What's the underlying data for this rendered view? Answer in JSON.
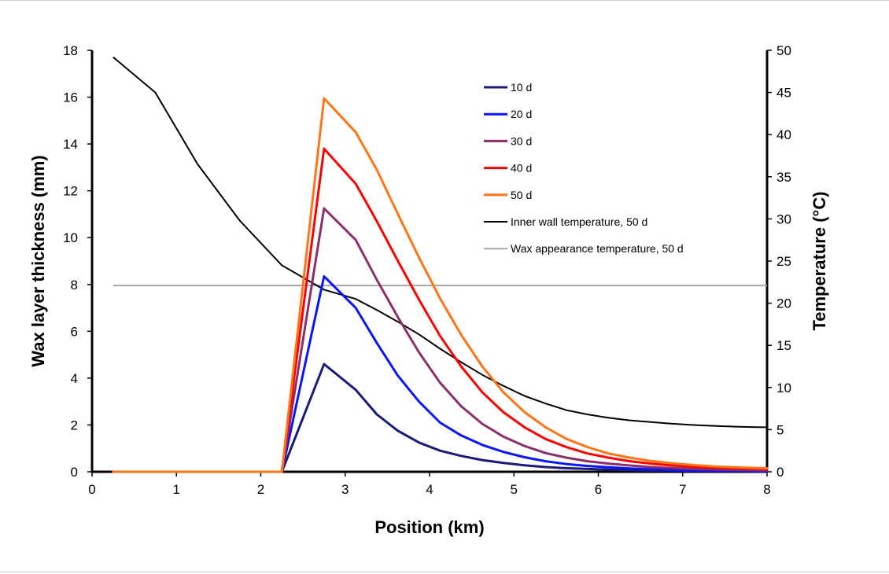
{
  "chart_data": {
    "type": "line",
    "title": "",
    "xlabel": "Position (km)",
    "ylabel": "Wax layer thickness (mm)",
    "y2label": "Temperature (°C)",
    "xlim": [
      0,
      8
    ],
    "ylim": [
      0,
      18
    ],
    "y2lim": [
      0,
      50
    ],
    "xticks": [
      0,
      1,
      2,
      3,
      4,
      5,
      6,
      7,
      8
    ],
    "yticks": [
      0,
      2,
      4,
      6,
      8,
      10,
      12,
      14,
      16,
      18
    ],
    "y2ticks": [
      0,
      5,
      10,
      15,
      20,
      25,
      30,
      35,
      40,
      45,
      50
    ],
    "grid": false,
    "legend_position": "upper-center-right",
    "x": [
      0.25,
      0.75,
      1.25,
      1.75,
      2.25,
      2.75,
      3.125,
      3.375,
      3.625,
      3.875,
      4.125,
      4.375,
      4.625,
      4.875,
      5.125,
      5.375,
      5.625,
      5.875,
      6.125,
      6.375,
      6.625,
      6.875,
      7.125,
      7.375,
      7.625,
      7.875,
      8.0
    ],
    "series": [
      {
        "name": "10 d",
        "color": "#1a1a7a",
        "axis": "left",
        "values": [
          0,
          0,
          0,
          0,
          0,
          4.6,
          3.5,
          2.45,
          1.75,
          1.25,
          0.9,
          0.68,
          0.5,
          0.38,
          0.28,
          0.2,
          0.15,
          0.12,
          0.09,
          0.07,
          0.05,
          0.04,
          0.03,
          0.02,
          0.02,
          0.01,
          0.01
        ]
      },
      {
        "name": "20 d",
        "color": "#0a14ff",
        "axis": "left",
        "values": [
          0,
          0,
          0,
          0,
          0,
          8.35,
          7.0,
          5.5,
          4.1,
          3.0,
          2.1,
          1.55,
          1.15,
          0.85,
          0.62,
          0.45,
          0.33,
          0.25,
          0.19,
          0.14,
          0.11,
          0.08,
          0.06,
          0.05,
          0.04,
          0.03,
          0.03
        ]
      },
      {
        "name": "30 d",
        "color": "#8b2f6b",
        "axis": "left",
        "values": [
          0,
          0,
          0,
          0,
          0,
          11.25,
          9.9,
          8.2,
          6.6,
          5.1,
          3.8,
          2.8,
          2.05,
          1.5,
          1.1,
          0.8,
          0.6,
          0.45,
          0.35,
          0.27,
          0.2,
          0.16,
          0.12,
          0.1,
          0.08,
          0.07,
          0.06
        ]
      },
      {
        "name": "40 d",
        "color": "#ff0000",
        "axis": "left",
        "values": [
          0,
          0,
          0,
          0,
          0,
          13.8,
          12.3,
          10.7,
          9.0,
          7.35,
          5.8,
          4.5,
          3.4,
          2.55,
          1.9,
          1.4,
          1.05,
          0.78,
          0.6,
          0.45,
          0.35,
          0.27,
          0.21,
          0.17,
          0.14,
          0.12,
          0.11
        ]
      },
      {
        "name": "50 d",
        "color": "#ff7416",
        "axis": "left",
        "values": [
          0,
          0,
          0,
          0,
          0,
          15.95,
          14.5,
          12.9,
          11.0,
          9.15,
          7.4,
          5.85,
          4.5,
          3.4,
          2.55,
          1.9,
          1.4,
          1.05,
          0.78,
          0.6,
          0.46,
          0.36,
          0.29,
          0.23,
          0.19,
          0.16,
          0.15
        ]
      },
      {
        "name": "Inner wall temperature, 50 d",
        "color": "#000000",
        "axis": "right",
        "values": [
          49.2,
          45.0,
          36.5,
          29.8,
          24.5,
          21.6,
          20.5,
          19.2,
          17.8,
          16.3,
          14.6,
          13.0,
          11.5,
          10.2,
          9.0,
          8.1,
          7.3,
          6.8,
          6.4,
          6.1,
          5.9,
          5.7,
          5.55,
          5.45,
          5.35,
          5.3,
          5.28
        ]
      },
      {
        "name": "Wax appearance temperature, 50 d",
        "color": "#a6a6a6",
        "axis": "right",
        "values": [
          22.1,
          22.1,
          22.1,
          22.1,
          22.1,
          22.1,
          22.1,
          22.1,
          22.1,
          22.1,
          22.1,
          22.1,
          22.1,
          22.1,
          22.1,
          22.1,
          22.1,
          22.1,
          22.1,
          22.1,
          22.1,
          22.1,
          22.1,
          22.1,
          22.1,
          22.1,
          22.1
        ]
      }
    ]
  }
}
